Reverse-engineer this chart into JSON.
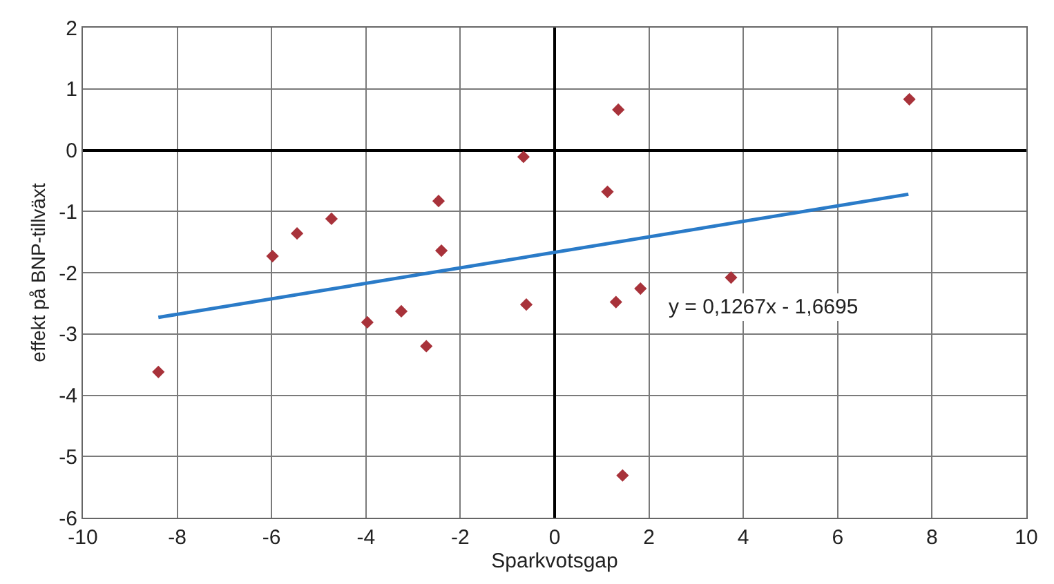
{
  "chart_data": {
    "type": "scatter",
    "xlabel": "Sparkvotsgap",
    "ylabel": "effekt på BNP-tillväxt",
    "xlim": [
      -10,
      10
    ],
    "xticks": [
      -10,
      -8,
      -6,
      -4,
      -2,
      0,
      2,
      4,
      6,
      8,
      10
    ],
    "ylim": [
      -6,
      2
    ],
    "yticks": [
      -6,
      -5,
      -4,
      -3,
      -2,
      -1,
      0,
      1,
      2
    ],
    "grid": true,
    "marker": "diamond",
    "series": [
      {
        "color": "#a8323a",
        "x": [
          -5.98,
          -5.46,
          -4.73,
          -2.46,
          -2.4,
          -0.66,
          1.12,
          1.35,
          7.52,
          -8.4,
          -3.97,
          -3.25,
          -2.72,
          -0.6,
          1.3,
          1.82,
          3.74,
          1.44
        ],
        "values": [
          -1.73,
          -1.36,
          -1.12,
          -0.83,
          -1.64,
          -0.11,
          -0.68,
          0.66,
          0.83,
          -3.62,
          -2.81,
          -2.63,
          -3.2,
          -2.52,
          -2.48,
          -2.26,
          -2.08,
          -5.31
        ]
      },
      {
        "type": "line",
        "color": "#2a7bc8",
        "marker": "none",
        "x": [
          -8.4,
          7.5
        ],
        "values": [
          -2.73,
          -0.72
        ]
      }
    ],
    "annotations": [
      "y = 0,1267x - 1,6695"
    ]
  }
}
